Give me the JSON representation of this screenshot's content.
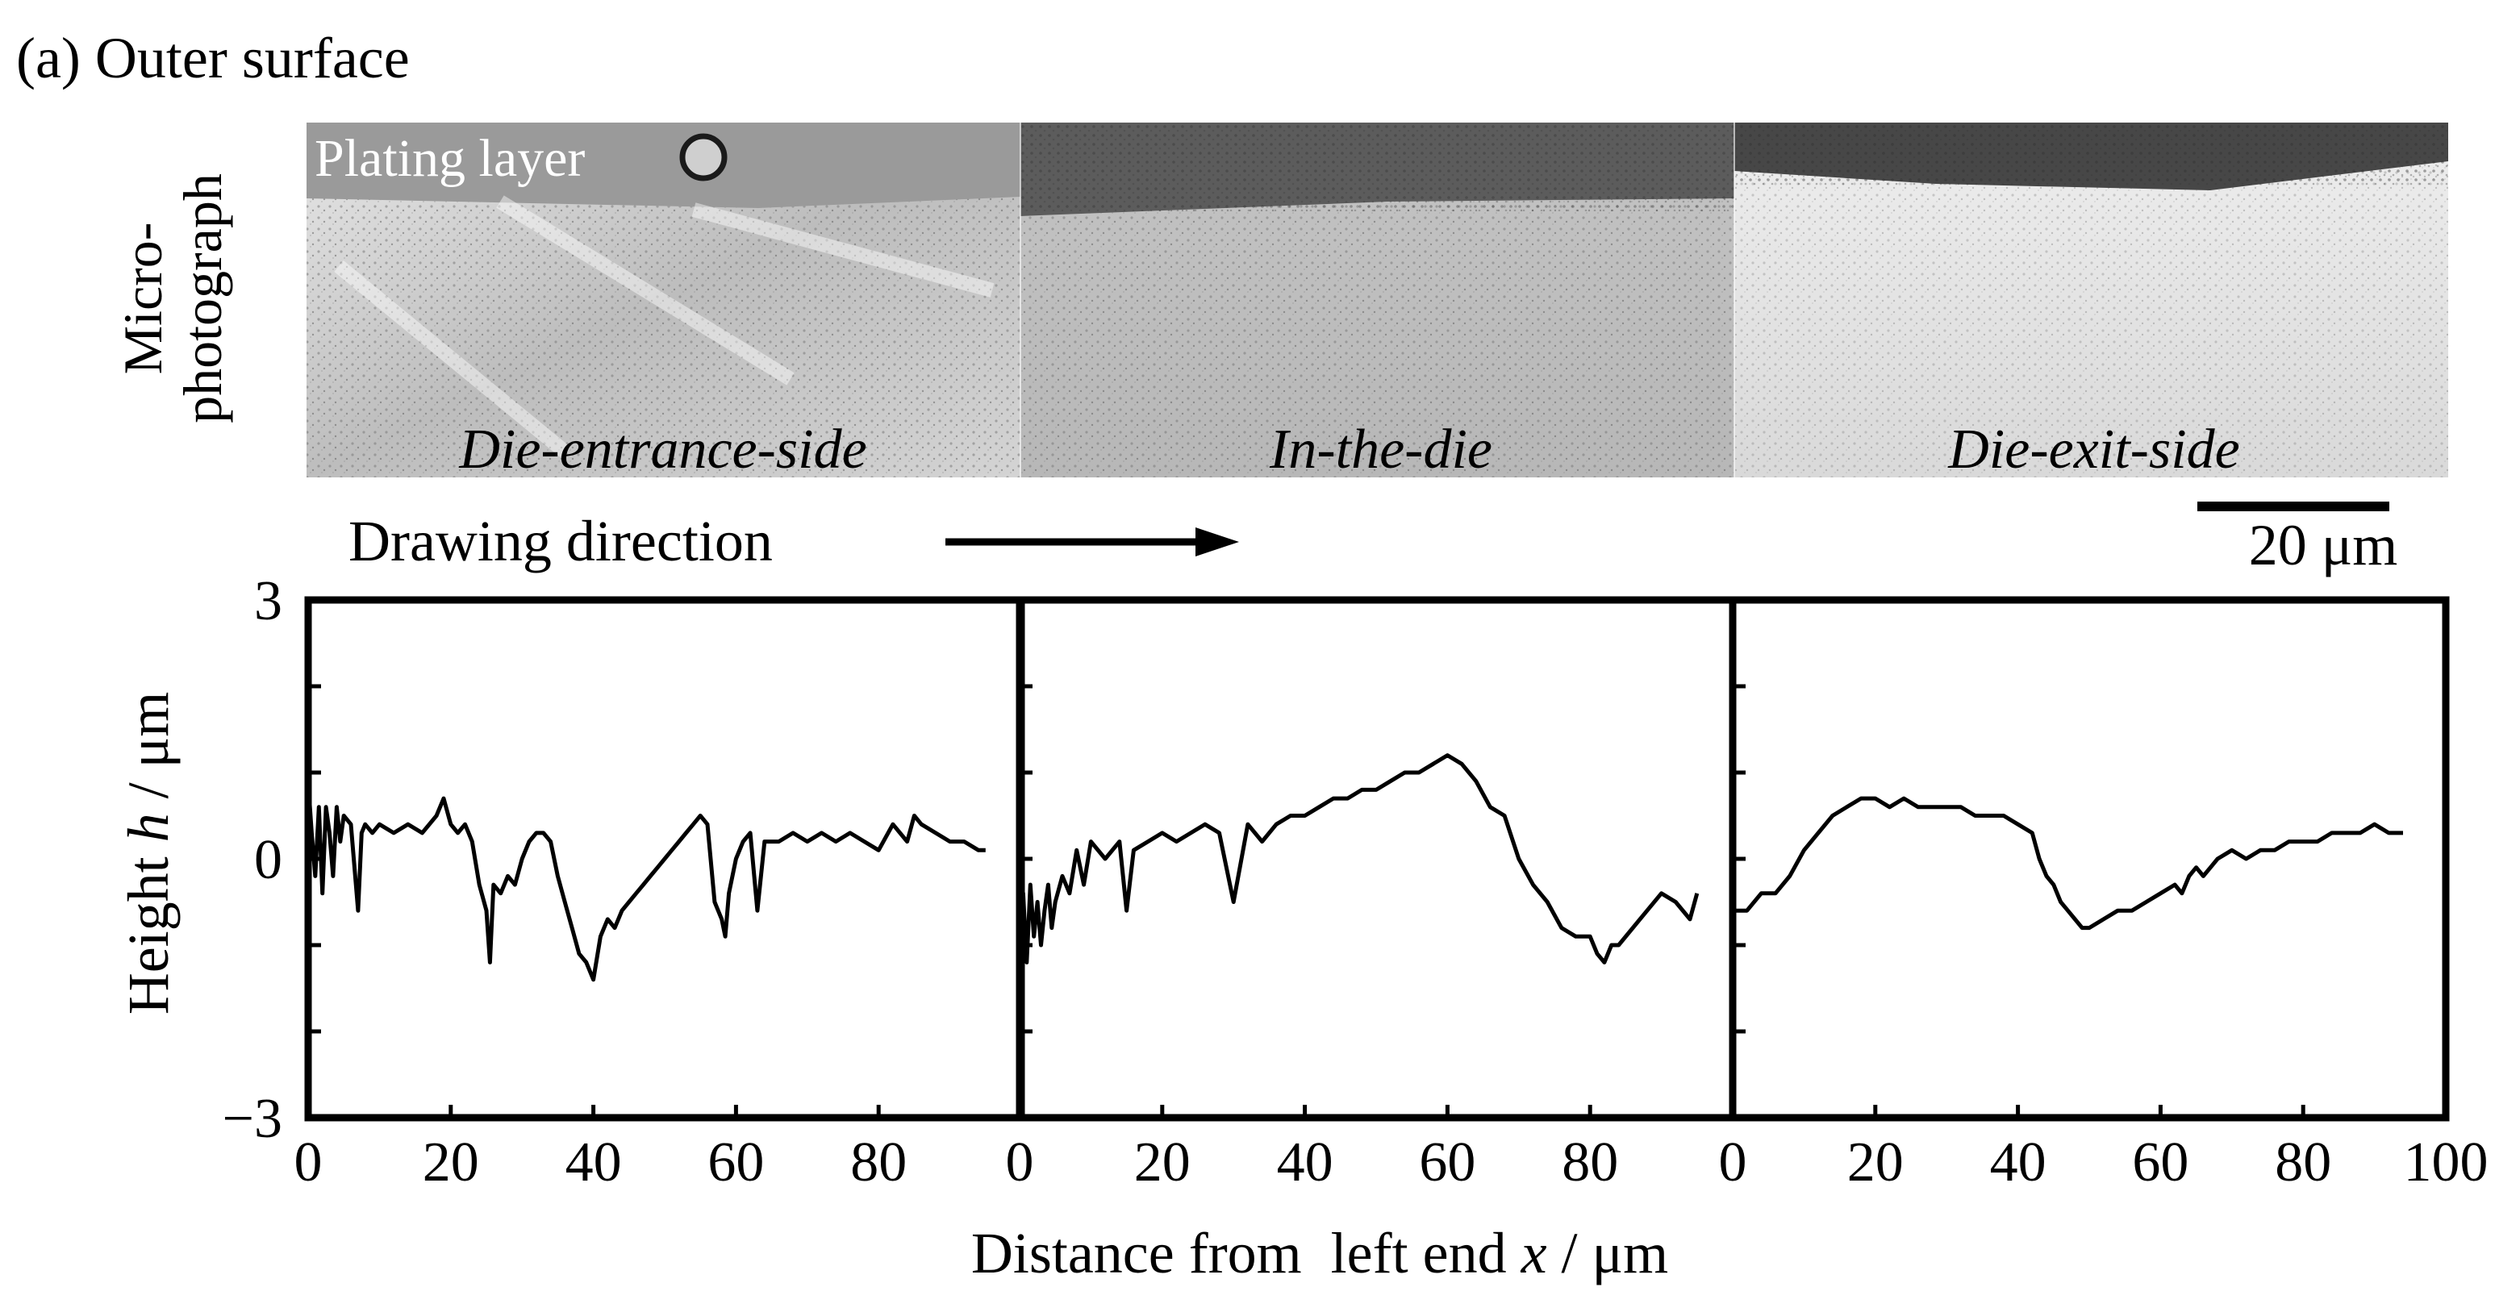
{
  "panel_label": "(a) Outer surface",
  "micrograph": {
    "side_label_line1": "Micro-",
    "side_label_line2": "photograph",
    "plating_label": "Plating layer",
    "section_labels": [
      "Die-entrance-side",
      "In-the-die",
      "Die-exit-side"
    ],
    "drawing_direction": "Drawing direction",
    "scale_bar_label": "20 μm"
  },
  "colors": {
    "line": "#000000",
    "plating_dark": "#595959",
    "plating_mid": "#8c8c8c",
    "sample_light": "#cfcfcf",
    "sample_lightest": "#e2e2e2"
  },
  "chart_data": {
    "type": "line",
    "ylabel_prefix": "Height ",
    "ylabel_var": "h",
    "ylabel_suffix": " / μm",
    "xlabel_prefix": "Distance from  left end ",
    "xlabel_var": "x",
    "xlabel_suffix": " / μm",
    "ylim": [
      -3,
      3
    ],
    "yticks": [
      -3,
      -2,
      -1,
      0,
      1,
      2,
      3
    ],
    "ytick_labels": [
      "−3",
      "",
      "",
      "0",
      "",
      "",
      "3"
    ],
    "xlim": [
      0,
      100
    ],
    "xticks_panel": [
      0,
      20,
      40,
      60,
      80
    ],
    "xticks_last": [
      0,
      20,
      40,
      60,
      80,
      100
    ],
    "grid": false,
    "panels": [
      {
        "name": "Die-entrance-side",
        "x": [
          0,
          0.5,
          1,
          1.5,
          2,
          2.5,
          3,
          3.5,
          4,
          4.5,
          5,
          6,
          7,
          7.5,
          8,
          9,
          10,
          12,
          14,
          16,
          18,
          19,
          20,
          21,
          22,
          23,
          24,
          25,
          25.5,
          26,
          27,
          28,
          29,
          30,
          31,
          32,
          33,
          34,
          35,
          36,
          37,
          38,
          39,
          40,
          41,
          42,
          43,
          44,
          45,
          46,
          47,
          48,
          49,
          50,
          51,
          52,
          53,
          54,
          55,
          56,
          57,
          58,
          58.5,
          59,
          60,
          61,
          62,
          63,
          64,
          66,
          68,
          70,
          72,
          74,
          76,
          78,
          80,
          82,
          84,
          85,
          86,
          88,
          90,
          92,
          94,
          95
        ],
        "y": [
          0.9,
          0.3,
          -0.2,
          0.6,
          -0.4,
          0.6,
          0.3,
          -0.2,
          0.6,
          0.2,
          0.5,
          0.4,
          -0.6,
          0.3,
          0.4,
          0.3,
          0.4,
          0.3,
          0.4,
          0.3,
          0.5,
          0.7,
          0.4,
          0.3,
          0.4,
          0.2,
          -0.3,
          -0.6,
          -1.2,
          -0.3,
          -0.4,
          -0.2,
          -0.3,
          0,
          0.2,
          0.3,
          0.3,
          0.2,
          -0.2,
          -0.5,
          -0.8,
          -1.1,
          -1.2,
          -1.4,
          -0.9,
          -0.7,
          -0.8,
          -0.6,
          -0.5,
          -0.4,
          -0.3,
          -0.2,
          -0.1,
          0,
          0.1,
          0.2,
          0.3,
          0.4,
          0.5,
          0.4,
          -0.5,
          -0.7,
          -0.9,
          -0.4,
          0,
          0.2,
          0.3,
          -0.6,
          0.2,
          0.2,
          0.3,
          0.2,
          0.3,
          0.2,
          0.3,
          0.2,
          0.1,
          0.4,
          0.2,
          0.5,
          0.4,
          0.3,
          0.2,
          0.2,
          0.1,
          0.1
        ]
      },
      {
        "name": "In-the-die",
        "x": [
          0,
          0.5,
          1,
          1.5,
          2,
          2.5,
          3,
          3.5,
          4,
          4.5,
          5,
          6,
          7,
          8,
          9,
          10,
          12,
          14,
          15,
          16,
          18,
          20,
          22,
          24,
          26,
          28,
          30,
          32,
          34,
          36,
          38,
          40,
          42,
          44,
          46,
          48,
          50,
          52,
          54,
          56,
          58,
          60,
          62,
          64,
          66,
          68,
          70,
          72,
          74,
          76,
          78,
          80,
          81,
          82,
          83,
          84,
          86,
          88,
          90,
          92,
          94,
          95
        ],
        "y": [
          -0.9,
          -0.4,
          -1.2,
          -0.3,
          -0.9,
          -0.5,
          -1.0,
          -0.6,
          -0.3,
          -0.8,
          -0.5,
          -0.2,
          -0.4,
          0.1,
          -0.3,
          0.2,
          0,
          0.2,
          -0.6,
          0.1,
          0.2,
          0.3,
          0.2,
          0.3,
          0.4,
          0.3,
          -0.5,
          0.4,
          0.2,
          0.4,
          0.5,
          0.5,
          0.6,
          0.7,
          0.7,
          0.8,
          0.8,
          0.9,
          1.0,
          1.0,
          1.1,
          1.2,
          1.1,
          0.9,
          0.6,
          0.5,
          0.0,
          -0.3,
          -0.5,
          -0.8,
          -0.9,
          -0.9,
          -1.1,
          -1.2,
          -1.0,
          -1.0,
          -0.8,
          -0.6,
          -0.4,
          -0.5,
          -0.7,
          -0.4
        ]
      },
      {
        "name": "Die-exit-side",
        "x": [
          0,
          2,
          4,
          6,
          8,
          10,
          12,
          14,
          16,
          18,
          20,
          22,
          24,
          26,
          28,
          30,
          32,
          34,
          36,
          38,
          40,
          42,
          43,
          44,
          45,
          46,
          47,
          48,
          49,
          50,
          52,
          54,
          56,
          58,
          60,
          62,
          63,
          64,
          65,
          66,
          67,
          68,
          70,
          72,
          74,
          76,
          78,
          80,
          82,
          84,
          86,
          88,
          90,
          92,
          94
        ],
        "y": [
          -0.6,
          -0.6,
          -0.4,
          -0.4,
          -0.2,
          0.1,
          0.3,
          0.5,
          0.6,
          0.7,
          0.7,
          0.6,
          0.7,
          0.6,
          0.6,
          0.6,
          0.6,
          0.5,
          0.5,
          0.5,
          0.4,
          0.3,
          0.0,
          -0.2,
          -0.3,
          -0.5,
          -0.6,
          -0.7,
          -0.8,
          -0.8,
          -0.7,
          -0.6,
          -0.6,
          -0.5,
          -0.4,
          -0.3,
          -0.4,
          -0.2,
          -0.1,
          -0.2,
          -0.1,
          0,
          0.1,
          0,
          0.1,
          0.1,
          0.2,
          0.2,
          0.2,
          0.3,
          0.3,
          0.3,
          0.4,
          0.3,
          0.3
        ]
      }
    ]
  }
}
